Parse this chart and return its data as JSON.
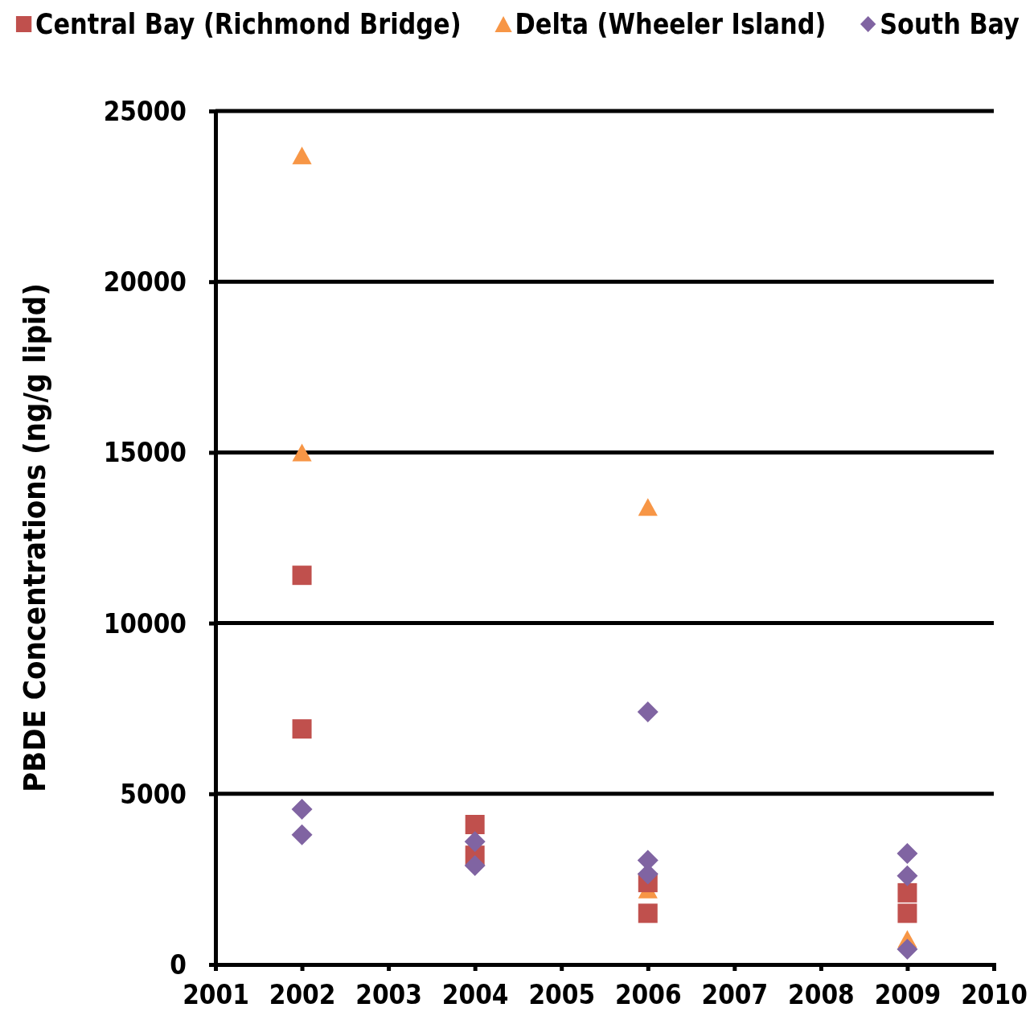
{
  "chart_data": {
    "type": "scatter",
    "ylabel": "PBDE Concentrations (ng/g lipid)",
    "xlim": [
      2001,
      2010
    ],
    "xticks": [
      2001,
      2002,
      2003,
      2004,
      2005,
      2006,
      2007,
      2008,
      2009,
      2010
    ],
    "ylim": [
      0,
      25000
    ],
    "yticks": [
      0,
      5000,
      10000,
      15000,
      20000,
      25000
    ],
    "grid": "y",
    "legend": "top",
    "series": [
      {
        "name": "Central Bay (Richmond Bridge)",
        "color": "#c0504d",
        "marker": "square",
        "x": [
          2002,
          2002,
          2004,
          2004,
          2006,
          2006,
          2009,
          2009
        ],
        "values": [
          11400,
          6900,
          4100,
          3200,
          2400,
          1500,
          2100,
          1500
        ]
      },
      {
        "name": "Delta (Wheeler Island)",
        "color": "#f79646",
        "marker": "triangle",
        "x": [
          2002,
          2002,
          2006,
          2006,
          2009
        ],
        "values": [
          23700,
          15000,
          13400,
          2200,
          750
        ]
      },
      {
        "name": "South Bay",
        "color": "#8064a2",
        "marker": "diamond",
        "x": [
          2002,
          2002,
          2004,
          2004,
          2006,
          2006,
          2006,
          2009,
          2009,
          2009
        ],
        "values": [
          4550,
          3800,
          3600,
          2900,
          7400,
          3050,
          2650,
          3250,
          2600,
          450
        ]
      }
    ]
  }
}
